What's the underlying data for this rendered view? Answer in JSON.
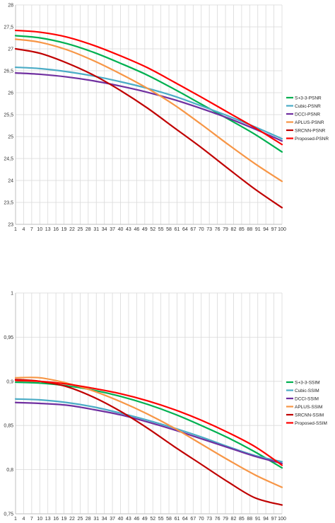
{
  "chart_data": [
    {
      "type": "line",
      "title": "",
      "xlabel": "",
      "ylabel": "",
      "ylim": [
        23,
        28
      ],
      "yticks": [
        "23",
        "23,5",
        "24",
        "24,5",
        "25",
        "25,5",
        "26",
        "26,5",
        "27",
        "27,5",
        "28"
      ],
      "xticks": [
        "1",
        "4",
        "7",
        "10",
        "13",
        "16",
        "19",
        "22",
        "25",
        "28",
        "31",
        "34",
        "37",
        "40",
        "43",
        "46",
        "49",
        "52",
        "55",
        "58",
        "61",
        "64",
        "67",
        "70",
        "73",
        "76",
        "79",
        "82",
        "85",
        "88",
        "91",
        "94",
        "97",
        "100"
      ],
      "grid": true,
      "legend_position": "right",
      "series": [
        {
          "name": "S+3-3-PSNR",
          "color": "#00b050",
          "x": [
            1,
            10,
            20,
            30,
            40,
            50,
            60,
            70,
            80,
            90,
            100
          ],
          "y": [
            27.3,
            27.25,
            27.12,
            26.92,
            26.67,
            26.4,
            26.08,
            25.74,
            25.4,
            25.05,
            24.65
          ]
        },
        {
          "name": "Cubic-PSNR",
          "color": "#4bacc6",
          "x": [
            1,
            10,
            20,
            30,
            40,
            50,
            60,
            70,
            80,
            90,
            100
          ],
          "y": [
            26.58,
            26.55,
            26.48,
            26.38,
            26.25,
            26.1,
            25.92,
            25.7,
            25.47,
            25.22,
            24.95
          ]
        },
        {
          "name": "DCCI-PSNR",
          "color": "#7030a0",
          "x": [
            1,
            10,
            20,
            30,
            40,
            50,
            60,
            70,
            80,
            90,
            100
          ],
          "y": [
            26.45,
            26.42,
            26.36,
            26.27,
            26.15,
            26.01,
            25.84,
            25.64,
            25.42,
            25.17,
            24.9
          ]
        },
        {
          "name": "APLUS-PSNR",
          "color": "#f79646",
          "x": [
            1,
            10,
            20,
            30,
            40,
            50,
            60,
            70,
            80,
            90,
            100
          ],
          "y": [
            27.22,
            27.15,
            26.98,
            26.73,
            26.43,
            26.1,
            25.72,
            25.28,
            24.82,
            24.38,
            23.98
          ]
        },
        {
          "name": "SRCNN-PSNR",
          "color": "#c00000",
          "x": [
            1,
            10,
            20,
            30,
            40,
            50,
            60,
            70,
            80,
            90,
            100
          ],
          "y": [
            27.0,
            26.9,
            26.68,
            26.4,
            26.05,
            25.65,
            25.2,
            24.75,
            24.27,
            23.8,
            23.38
          ]
        },
        {
          "name": "Proposed-PSNR",
          "color": "#ff0000",
          "x": [
            1,
            10,
            20,
            30,
            40,
            50,
            60,
            70,
            80,
            90,
            100
          ],
          "y": [
            27.42,
            27.38,
            27.27,
            27.08,
            26.84,
            26.57,
            26.24,
            25.9,
            25.55,
            25.2,
            24.82
          ]
        }
      ]
    },
    {
      "type": "line",
      "title": "",
      "xlabel": "",
      "ylabel": "",
      "ylim": [
        0.75,
        1
      ],
      "yticks": [
        "0,75",
        "0,8",
        "0,85",
        "0,9",
        "0,95",
        "1"
      ],
      "xticks": [
        "1",
        "4",
        "7",
        "10",
        "13",
        "16",
        "19",
        "22",
        "25",
        "28",
        "31",
        "34",
        "37",
        "40",
        "43",
        "46",
        "49",
        "52",
        "55",
        "58",
        "61",
        "64",
        "67",
        "70",
        "73",
        "76",
        "79",
        "82",
        "85",
        "88",
        "91",
        "94",
        "97",
        "100"
      ],
      "grid": true,
      "legend_position": "right",
      "series": [
        {
          "name": "S+3-3-SSIM",
          "color": "#00b050",
          "x": [
            1,
            10,
            20,
            30,
            40,
            50,
            60,
            70,
            80,
            90,
            100
          ],
          "y": [
            0.899,
            0.898,
            0.895,
            0.89,
            0.883,
            0.874,
            0.863,
            0.85,
            0.836,
            0.82,
            0.802
          ]
        },
        {
          "name": "Cubic-SSIM",
          "color": "#4bacc6",
          "x": [
            1,
            10,
            20,
            30,
            40,
            50,
            60,
            70,
            80,
            90,
            100
          ],
          "y": [
            0.88,
            0.879,
            0.876,
            0.871,
            0.864,
            0.856,
            0.847,
            0.837,
            0.826,
            0.816,
            0.809
          ]
        },
        {
          "name": "DCCI-SSIM",
          "color": "#7030a0",
          "x": [
            1,
            10,
            20,
            30,
            40,
            50,
            60,
            70,
            80,
            90,
            100
          ],
          "y": [
            0.876,
            0.875,
            0.873,
            0.868,
            0.862,
            0.854,
            0.845,
            0.835,
            0.825,
            0.815,
            0.807
          ]
        },
        {
          "name": "APLUS-SSIM",
          "color": "#f79646",
          "x": [
            1,
            10,
            20,
            30,
            40,
            50,
            60,
            70,
            80,
            90,
            100
          ],
          "y": [
            0.904,
            0.904,
            0.898,
            0.889,
            0.877,
            0.863,
            0.847,
            0.829,
            0.811,
            0.794,
            0.78
          ]
        },
        {
          "name": "SRCNN-SSIM",
          "color": "#c00000",
          "x": [
            1,
            10,
            20,
            30,
            40,
            50,
            60,
            70,
            80,
            90,
            100
          ],
          "y": [
            0.902,
            0.9,
            0.894,
            0.882,
            0.866,
            0.847,
            0.826,
            0.806,
            0.786,
            0.768,
            0.76
          ]
        },
        {
          "name": "Proposed-SSIM",
          "color": "#ff0000",
          "x": [
            1,
            10,
            20,
            30,
            40,
            50,
            60,
            70,
            80,
            90,
            100
          ],
          "y": [
            0.901,
            0.9,
            0.897,
            0.892,
            0.886,
            0.878,
            0.868,
            0.856,
            0.842,
            0.826,
            0.805
          ]
        }
      ]
    }
  ]
}
